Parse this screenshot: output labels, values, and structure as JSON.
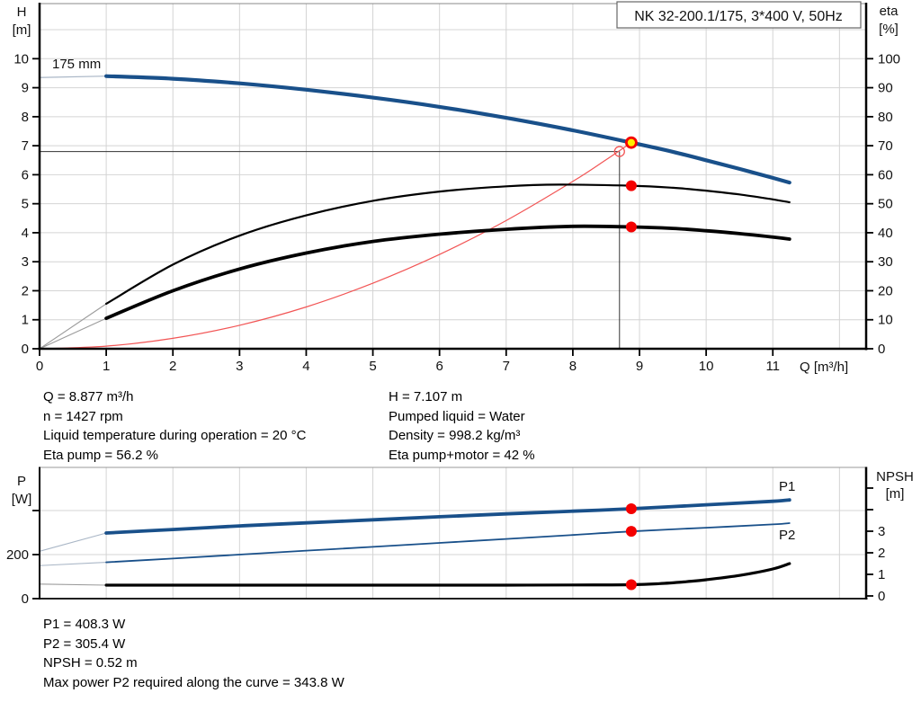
{
  "title_box": {
    "text": "NK 32-200.1/175, 3*400 V, 50Hz"
  },
  "colors": {
    "blue": "#19508A",
    "red": "#F40000",
    "system_red": "#F25555",
    "black": "#000000",
    "grid": "#D4D4D4",
    "gray_ext": "#9B9B9B",
    "blue_ext": "#A9B6C6",
    "crosshair": "#333333",
    "marker_yellow": "#FFEE00"
  },
  "info_blocks": {
    "operating_left": [
      "Q = 8.877 m³/h",
      "n = 1427 rpm",
      "Liquid temperature during operation = 20 °C",
      "Eta pump = 56.2 %"
    ],
    "operating_right": [
      "H = 7.107 m",
      "Pumped liquid = Water",
      "Density = 998.2 kg/m³",
      "Eta pump+motor = 42 %"
    ],
    "power_block": [
      "P1 = 408.3 W",
      "P2 = 305.4 W",
      "NPSH = 0.52 m",
      "Max power P2 required along the curve = 343.8 W"
    ]
  },
  "chart_data": [
    {
      "id": "head-flow-chart",
      "type": "line",
      "impeller_label": "175 mm",
      "x_axis": {
        "label": "Q [m³/h]",
        "min": 0,
        "max": 12.4,
        "ticks": [
          {
            "q": 0,
            "l": "0"
          },
          {
            "q": 1,
            "l": "1"
          },
          {
            "q": 2,
            "l": "2"
          },
          {
            "q": 3,
            "l": "3"
          },
          {
            "q": 4,
            "l": "4"
          },
          {
            "q": 5,
            "l": "5"
          },
          {
            "q": 6,
            "l": "6"
          },
          {
            "q": 7,
            "l": "7"
          },
          {
            "q": 8,
            "l": "8"
          },
          {
            "q": 9,
            "l": "9"
          },
          {
            "q": 10,
            "l": "10"
          },
          {
            "q": 11,
            "l": "11"
          }
        ],
        "gridlines": [
          1,
          2,
          3,
          4,
          5,
          6,
          7,
          8,
          9,
          10,
          11,
          12
        ]
      },
      "y_left": {
        "label": [
          "H",
          "[m]"
        ],
        "min": 0,
        "max": 11.9,
        "ticks": [
          {
            "v": 0,
            "l": "0"
          },
          {
            "v": 1,
            "l": "1"
          },
          {
            "v": 2,
            "l": "2"
          },
          {
            "v": 3,
            "l": "3"
          },
          {
            "v": 4,
            "l": "4"
          },
          {
            "v": 5,
            "l": "5"
          },
          {
            "v": 6,
            "l": "6"
          },
          {
            "v": 7,
            "l": "7"
          },
          {
            "v": 8,
            "l": "8"
          },
          {
            "v": 9,
            "l": "9"
          },
          {
            "v": 10,
            "l": "10"
          }
        ],
        "gridlines": [
          1,
          2,
          3,
          4,
          5,
          6,
          7,
          8,
          9,
          10,
          11
        ]
      },
      "y_right": {
        "label": [
          "eta",
          "[%]"
        ],
        "min": 0,
        "max": 119,
        "ticks": [
          {
            "v": 0,
            "l": "0"
          },
          {
            "v": 10,
            "l": "10"
          },
          {
            "v": 20,
            "l": "20"
          },
          {
            "v": 30,
            "l": "30"
          },
          {
            "v": 40,
            "l": "40"
          },
          {
            "v": 50,
            "l": "50"
          },
          {
            "v": 60,
            "l": "60"
          },
          {
            "v": 70,
            "l": "70"
          },
          {
            "v": 80,
            "l": "80"
          },
          {
            "v": 90,
            "l": "90"
          },
          {
            "v": 100,
            "l": "100"
          }
        ]
      },
      "series": [
        {
          "name": "pump-head-extension",
          "axis": "left",
          "color": "blue_ext",
          "width": 1.2,
          "points": [
            [
              0,
              9.35
            ],
            [
              1,
              9.4
            ]
          ]
        },
        {
          "name": "eta-pump-extension",
          "axis": "right",
          "color": "gray_ext",
          "width": 1.1,
          "points": [
            [
              0,
              0
            ],
            [
              1,
              15.5
            ]
          ]
        },
        {
          "name": "eta-pump-motor-extension",
          "axis": "right",
          "color": "gray_ext",
          "width": 1.1,
          "points": [
            [
              0,
              0
            ],
            [
              1,
              10.5
            ]
          ]
        },
        {
          "name": "system-curve",
          "axis": "left",
          "color": "system_red",
          "width": 1.2,
          "points": [
            [
              0,
              0
            ],
            [
              1,
              0.09
            ],
            [
              2,
              0.36
            ],
            [
              3,
              0.81
            ],
            [
              4,
              1.44
            ],
            [
              5,
              2.26
            ],
            [
              6,
              3.25
            ],
            [
              7,
              4.42
            ],
            [
              8,
              5.77
            ],
            [
              8.5,
              6.52
            ],
            [
              8.877,
              7.107
            ]
          ]
        },
        {
          "name": "eta-pump-curve",
          "axis": "right",
          "color": "black",
          "width": 2.2,
          "points": [
            [
              1,
              15.5
            ],
            [
              2,
              29
            ],
            [
              3,
              39
            ],
            [
              4,
              46
            ],
            [
              5,
              51
            ],
            [
              6,
              54.2
            ],
            [
              7,
              56
            ],
            [
              7.8,
              56.6
            ],
            [
              8.877,
              56.2
            ],
            [
              9.5,
              55.5
            ],
            [
              10,
              54.5
            ],
            [
              10.5,
              53.2
            ],
            [
              11,
              51.5
            ],
            [
              11.25,
              50.5
            ]
          ]
        },
        {
          "name": "eta-pump-motor-curve",
          "axis": "right",
          "color": "black",
          "width": 3.8,
          "points": [
            [
              1,
              10.5
            ],
            [
              2,
              20
            ],
            [
              3,
              27.5
            ],
            [
              4,
              33
            ],
            [
              5,
              37
            ],
            [
              6,
              39.5
            ],
            [
              7,
              41.2
            ],
            [
              8,
              42.2
            ],
            [
              8.877,
              42
            ],
            [
              9.5,
              41.5
            ],
            [
              10,
              40.7
            ],
            [
              10.5,
              39.7
            ],
            [
              11,
              38.5
            ],
            [
              11.25,
              37.8
            ]
          ]
        },
        {
          "name": "pump-head-curve",
          "axis": "left",
          "color": "blue",
          "width": 4.2,
          "points": [
            [
              1,
              9.4
            ],
            [
              2,
              9.31
            ],
            [
              3,
              9.15
            ],
            [
              4,
              8.93
            ],
            [
              5,
              8.66
            ],
            [
              6,
              8.34
            ],
            [
              7,
              7.96
            ],
            [
              8,
              7.53
            ],
            [
              8.877,
              7.107
            ],
            [
              9.5,
              6.79
            ],
            [
              10,
              6.5
            ],
            [
              10.5,
              6.2
            ],
            [
              11,
              5.89
            ],
            [
              11.25,
              5.73
            ]
          ]
        }
      ],
      "crosshair": {
        "q": 8.7,
        "h": 6.8
      },
      "markers": [
        {
          "name": "system-curve-marker",
          "axis": "left",
          "q": 8.7,
          "v": 6.8,
          "style": "open-red",
          "interactable": false
        },
        {
          "name": "eta-pump-duty-marker",
          "axis": "right",
          "q": 8.877,
          "v": 56.2,
          "style": "red",
          "interactable": false
        },
        {
          "name": "eta-pump-motor-duty-marker",
          "axis": "right",
          "q": 8.877,
          "v": 42,
          "style": "red",
          "interactable": false
        },
        {
          "name": "duty-point-marker",
          "axis": "left",
          "q": 8.877,
          "v": 7.107,
          "style": "yellow",
          "interactable": true
        }
      ]
    },
    {
      "id": "power-npsh-chart",
      "type": "line",
      "x_axis": {
        "min": 0,
        "max": 12.4,
        "gridlines": [
          1,
          2,
          3,
          4,
          5,
          6,
          7,
          8,
          9,
          10,
          11,
          12
        ]
      },
      "y_left": {
        "label": [
          "P",
          "[W]"
        ],
        "min": 0,
        "max": 596,
        "ticks": [
          {
            "v": 0,
            "l": "0"
          },
          {
            "v": 200,
            "l": "200"
          },
          {
            "v": 400,
            "l": ""
          }
        ],
        "gridlines": [
          200,
          400
        ]
      },
      "y_right": {
        "label": [
          "NPSH",
          "[m]"
        ],
        "min": 0,
        "max": 6,
        "ticks": [
          {
            "v": 0,
            "l": "0"
          },
          {
            "v": 1,
            "l": "1"
          },
          {
            "v": 2,
            "l": "2"
          },
          {
            "v": 3,
            "l": "3"
          },
          {
            "v": 4,
            "l": ""
          },
          {
            "v": 5,
            "l": ""
          }
        ]
      },
      "series": [
        {
          "name": "p1-extension",
          "axis": "p",
          "color": "blue_ext",
          "width": 1.1,
          "points": [
            [
              0,
              215
            ],
            [
              1,
              298
            ]
          ]
        },
        {
          "name": "p2-extension",
          "axis": "p",
          "color": "blue_ext",
          "width": 1.1,
          "points": [
            [
              0,
              150
            ],
            [
              1,
              165
            ]
          ]
        },
        {
          "name": "npsh-extension",
          "axis": "npsh",
          "color": "gray_ext",
          "width": 1.1,
          "points": [
            [
              0,
              0.55
            ],
            [
              1,
              0.5
            ]
          ]
        },
        {
          "name": "p2-curve",
          "axis": "p",
          "color": "blue",
          "width": 1.8,
          "end_label": "P2",
          "points": [
            [
              1,
              165
            ],
            [
              2,
              182
            ],
            [
              3,
              200
            ],
            [
              4,
              218
            ],
            [
              5,
              235
            ],
            [
              6,
              253
            ],
            [
              7,
              271
            ],
            [
              8,
              289
            ],
            [
              8.877,
              305.4
            ],
            [
              10,
              322
            ],
            [
              11,
              337
            ],
            [
              11.25,
              343
            ]
          ]
        },
        {
          "name": "p1-curve",
          "axis": "p",
          "color": "blue",
          "width": 3.8,
          "end_label": "P1",
          "points": [
            [
              1,
              298
            ],
            [
              2,
              314
            ],
            [
              3,
              330
            ],
            [
              4,
              344
            ],
            [
              5,
              358
            ],
            [
              6,
              372
            ],
            [
              7,
              385
            ],
            [
              8,
              397
            ],
            [
              8.877,
              408.3
            ],
            [
              10,
              426
            ],
            [
              11,
              442
            ],
            [
              11.25,
              448
            ]
          ]
        },
        {
          "name": "npsh-curve",
          "axis": "npsh",
          "color": "black",
          "width": 3.2,
          "points": [
            [
              1,
              0.5
            ],
            [
              2,
              0.5
            ],
            [
              3,
              0.5
            ],
            [
              4,
              0.5
            ],
            [
              5,
              0.5
            ],
            [
              6,
              0.5
            ],
            [
              7,
              0.5
            ],
            [
              8,
              0.51
            ],
            [
              8.877,
              0.52
            ],
            [
              9.3,
              0.57
            ],
            [
              9.7,
              0.66
            ],
            [
              10,
              0.75
            ],
            [
              10.5,
              0.95
            ],
            [
              11,
              1.25
            ],
            [
              11.25,
              1.5
            ]
          ]
        }
      ],
      "curve_end_labels": [
        {
          "text": "P1"
        },
        {
          "text": "P2"
        }
      ],
      "markers": [
        {
          "name": "p1-duty-marker",
          "axis": "p",
          "q": 8.877,
          "v": 408.3,
          "style": "red",
          "interactable": false
        },
        {
          "name": "p2-duty-marker",
          "axis": "p",
          "q": 8.877,
          "v": 305.4,
          "style": "red",
          "interactable": false
        },
        {
          "name": "npsh-duty-marker",
          "axis": "npsh",
          "q": 8.877,
          "v": 0.52,
          "style": "red",
          "interactable": false
        }
      ]
    }
  ]
}
